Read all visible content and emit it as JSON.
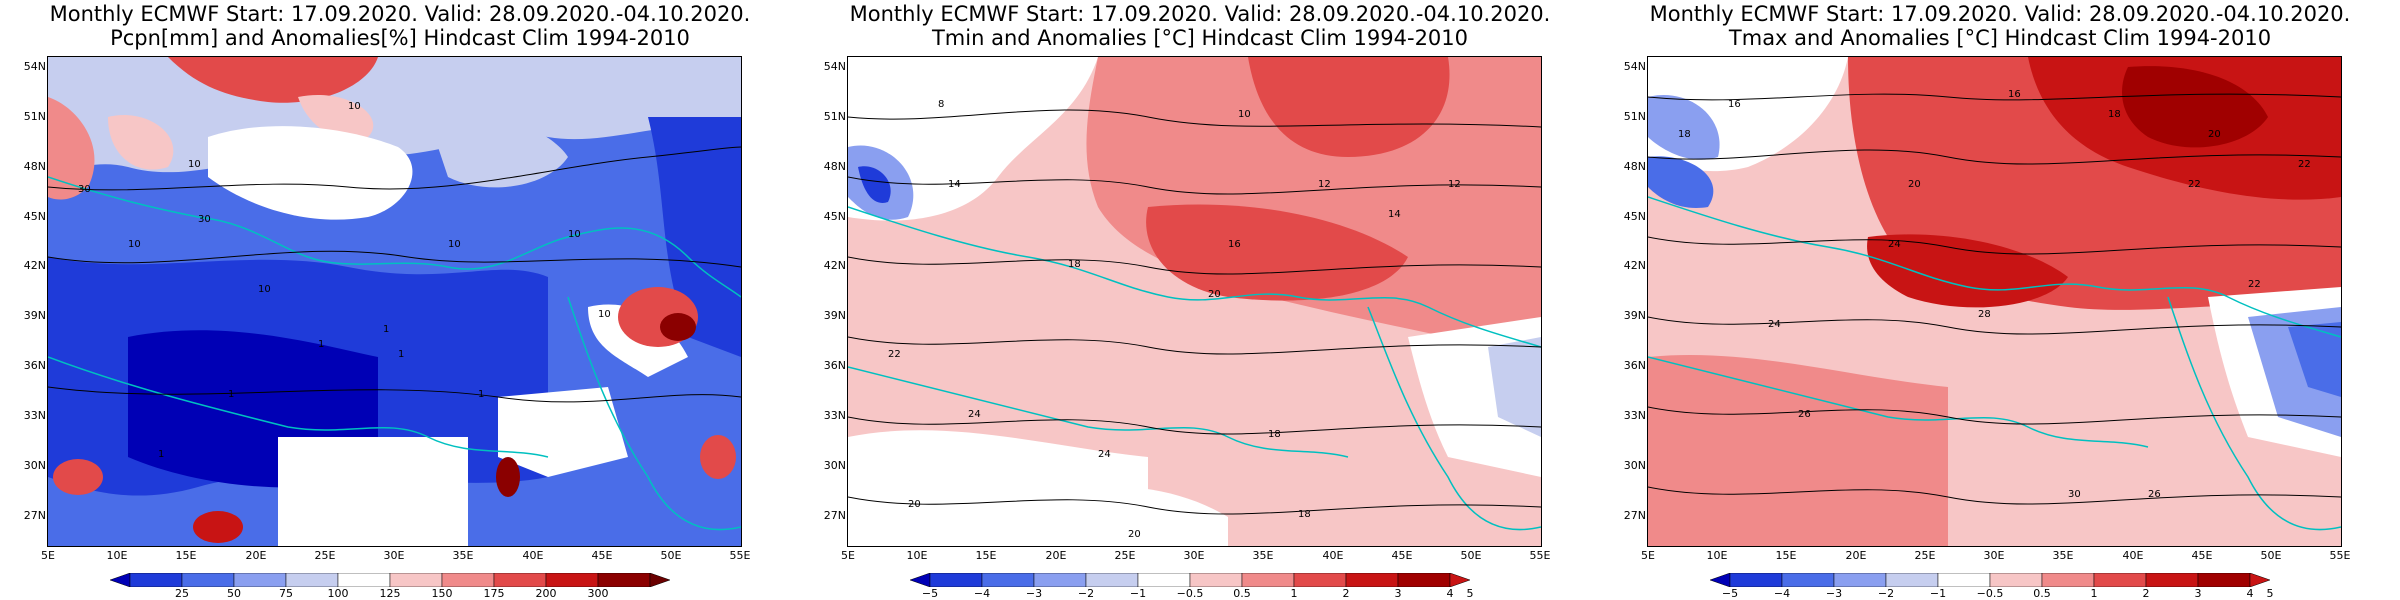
{
  "palettes": {
    "pcpn": [
      "#0000b5",
      "#1f3bd9",
      "#4a6de8",
      "#8a9ff0",
      "#c6ceef",
      "#ffffff",
      "#f7c6c6",
      "#f08a8a",
      "#e24a4a",
      "#c81414",
      "#8b0000"
    ],
    "temp": [
      "#0000b5",
      "#1f3bd9",
      "#4a6de8",
      "#8a9ff0",
      "#c6ceef",
      "#ffffff",
      "#f7c6c6",
      "#f08a8a",
      "#e24a4a",
      "#c81414",
      "#a00000"
    ]
  },
  "lat_ticks": [
    "54N",
    "51N",
    "48N",
    "45N",
    "42N",
    "39N",
    "36N",
    "33N",
    "30N",
    "27N"
  ],
  "lon_ticks": [
    "5E",
    "10E",
    "15E",
    "20E",
    "25E",
    "30E",
    "35E",
    "40E",
    "45E",
    "50E",
    "55E"
  ],
  "panels": [
    {
      "id": "pcpn",
      "title_line1": "Monthly ECMWF Start: 17.09.2020. Valid: 28.09.2020.-04.10.2020.",
      "title_line2": "Pcpn[mm] and Anomalies[%] Hindcast Clim 1994-2010",
      "colorbar_labels": [
        "25",
        "50",
        "75",
        "100",
        "125",
        "150",
        "175",
        "200",
        "300"
      ],
      "contour_labels": [
        "10",
        "10",
        "10",
        "10",
        "10",
        "30",
        "30",
        "10",
        "1",
        "1",
        "1",
        "1",
        "1",
        "1",
        "10"
      ]
    },
    {
      "id": "tmin",
      "title_line1": "Monthly ECMWF Start: 17.09.2020. Valid: 28.09.2020.-04.10.2020.",
      "title_line2": "Tmin and Anomalies [°C] Hindcast Clim 1994-2010",
      "colorbar_labels": [
        "−5",
        "−4",
        "−3",
        "−2",
        "−1",
        "−0.5",
        "0.5",
        "1",
        "2",
        "3",
        "4",
        "5"
      ],
      "contour_labels": [
        "10",
        "12",
        "14",
        "16",
        "18",
        "20",
        "22",
        "24",
        "18",
        "20",
        "14",
        "12",
        "8",
        "24",
        "20",
        "18"
      ]
    },
    {
      "id": "tmax",
      "title_line1": "Monthly ECMWF Start: 17.09.2020. Valid: 28.09.2020.-04.10.2020.",
      "title_line2": "Tmax and Anomalies [°C] Hindcast Clim 1994-2010",
      "colorbar_labels": [
        "−5",
        "−4",
        "−3",
        "−2",
        "−1",
        "−0.5",
        "0.5",
        "1",
        "2",
        "3",
        "4",
        "5"
      ],
      "contour_labels": [
        "16",
        "18",
        "20",
        "22",
        "24",
        "26",
        "28",
        "30",
        "22",
        "24",
        "16",
        "18",
        "20",
        "22",
        "26"
      ]
    }
  ]
}
